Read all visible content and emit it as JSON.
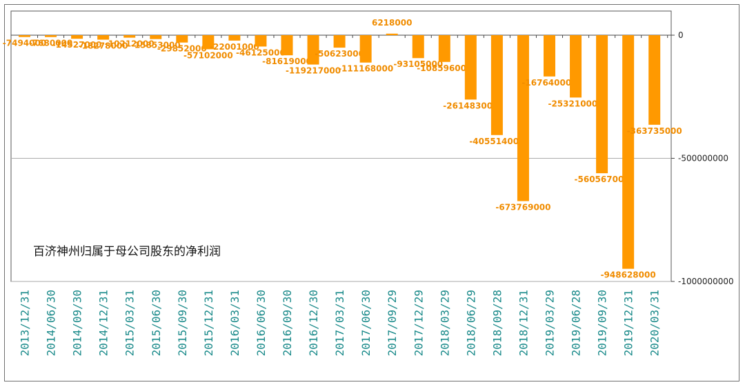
{
  "chart_data": {
    "type": "bar",
    "title": "百济神州归属于母公司股东的净利润",
    "xlabel": "",
    "ylabel": "",
    "ylim": [
      -1000000000,
      0
    ],
    "yticks": [
      0,
      -500000000,
      -1000000000
    ],
    "ytick_labels": [
      "0",
      "-500000000",
      "-1000000000"
    ],
    "grid": true,
    "bar_color": "#ff9900",
    "label_color": "#f08c00",
    "xtick_color": "#1a8a8a",
    "categories": [
      "2013/12/31",
      "2014/06/30",
      "2014/09/30",
      "2014/12/31",
      "2015/03/31",
      "2015/06/30",
      "2015/09/30",
      "2015/12/31",
      "2016/03/31",
      "2016/06/30",
      "2016/09/30",
      "2016/12/30",
      "2017/03/31",
      "2017/06/30",
      "2017/09/29",
      "2017/12/29",
      "2018/03/29",
      "2018/06/29",
      "2018/09/28",
      "2018/12/31",
      "2019/03/29",
      "2019/06/28",
      "2019/09/30",
      "2019/12/31",
      "2020/03/31"
    ],
    "values": [
      -7494000,
      -7680000,
      -14527000,
      -18278000,
      -10212000,
      -15853000,
      -29852000,
      -57102000,
      -22001000,
      -46125000,
      -81619000,
      -119217000,
      -50623000,
      -111168000,
      6218000,
      -93105000,
      -108596000,
      -261483000,
      -405514000,
      -673769000,
      -167640000,
      -253210000,
      -560567000,
      -948628000,
      -363735000
    ],
    "data_labels": [
      "-7494000",
      "-7680000",
      "-14527000",
      "-18278000",
      "-10212000",
      "-15853000",
      "-29852000",
      "-57102000",
      "-22001000",
      "-46125000",
      "-81619000",
      "-119217000",
      "-50623000",
      "-111168000",
      "6218000",
      "-93105000",
      "-108596000",
      "-261483000",
      "-405514000",
      "-673769000",
      "-167640000",
      "-253210000",
      "-560567000",
      "-948628000",
      "-363735000"
    ]
  }
}
